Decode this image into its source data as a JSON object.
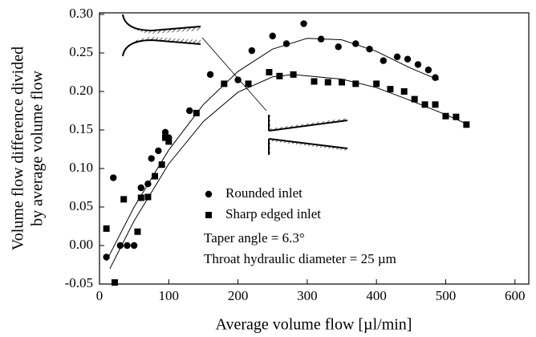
{
  "chart_data": {
    "type": "scatter",
    "x_label": "Average volume flow [µl/min]",
    "y_label": [
      "Volume flow difference divided",
      "by average volume flow"
    ],
    "xlim": [
      0,
      620
    ],
    "xticks": [
      0,
      100,
      200,
      300,
      400,
      500,
      600
    ],
    "ylim": [
      -0.05,
      0.3
    ],
    "yticks": [
      {
        "value": 0.3,
        "label": "0.30"
      },
      0.25,
      {
        "value": 0.2,
        "label": "0.20"
      },
      0.15,
      {
        "value": 0.1,
        "label": "0.10"
      },
      0.05,
      {
        "value": 0,
        "label": "0.00"
      },
      -0.05
    ],
    "series": [
      {
        "name": "Rounded inlet",
        "marker": "circle",
        "color": "#000000",
        "x": [
          10,
          20,
          30,
          40,
          50,
          60,
          70,
          75,
          85,
          95,
          100,
          130,
          160,
          200,
          220,
          250,
          270,
          295,
          320,
          345,
          370,
          390,
          410,
          430,
          445,
          460,
          475,
          485
        ],
        "values": [
          -0.015,
          0.088,
          0.0,
          0.0,
          0.0,
          0.075,
          0.08,
          0.113,
          0.123,
          0.147,
          0.14,
          0.175,
          0.222,
          0.215,
          0.253,
          0.272,
          0.262,
          0.288,
          0.268,
          0.258,
          0.262,
          0.255,
          0.24,
          0.245,
          0.242,
          0.235,
          0.228,
          0.218
        ]
      },
      {
        "name": "Sharp edged inlet",
        "marker": "square",
        "color": "#000000",
        "x": [
          10,
          22,
          35,
          55,
          60,
          70,
          80,
          90,
          95,
          100,
          140,
          180,
          215,
          245,
          260,
          280,
          310,
          330,
          350,
          370,
          400,
          420,
          440,
          455,
          470,
          485,
          500,
          515,
          530
        ],
        "values": [
          0.022,
          -0.048,
          0.06,
          0.018,
          0.062,
          0.063,
          0.09,
          0.105,
          0.14,
          0.135,
          0.172,
          0.21,
          0.21,
          0.225,
          0.22,
          0.222,
          0.213,
          0.212,
          0.212,
          0.21,
          0.21,
          0.203,
          0.2,
          0.19,
          0.183,
          0.183,
          0.168,
          0.167,
          0.157
        ]
      },
      {
        "marker": "line",
        "color": "#000000",
        "x": [
          10,
          50,
          100,
          150,
          200,
          250,
          300,
          350,
          400,
          450,
          490
        ],
        "values": [
          -0.02,
          0.05,
          0.124,
          0.183,
          0.226,
          0.255,
          0.269,
          0.267,
          0.252,
          0.23,
          0.215
        ]
      },
      {
        "marker": "line",
        "color": "#000000",
        "x": [
          15,
          50,
          100,
          150,
          200,
          250,
          280,
          350,
          400,
          450,
          500,
          530
        ],
        "values": [
          -0.03,
          0.032,
          0.106,
          0.161,
          0.199,
          0.219,
          0.222,
          0.216,
          0.205,
          0.188,
          0.17,
          0.158
        ]
      }
    ],
    "annotations": [
      "Taper angle = 6.3°",
      "Throat hydraulic diameter = 25 µm"
    ]
  }
}
